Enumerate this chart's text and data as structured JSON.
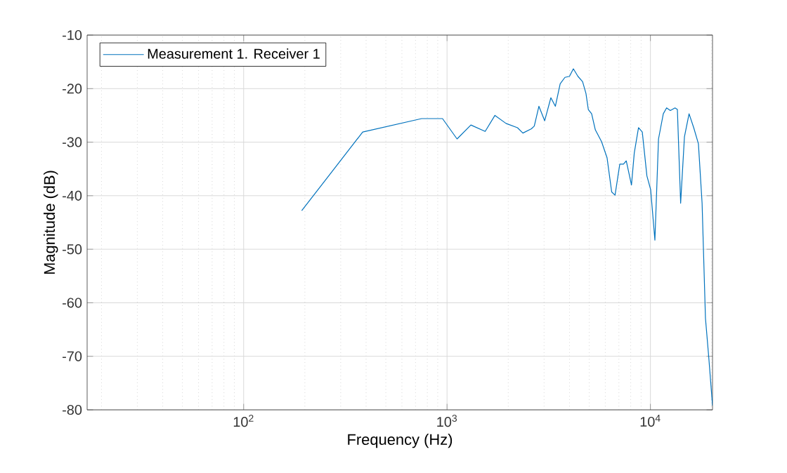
{
  "chart_data": {
    "type": "line",
    "xlabel": "Frequency (Hz)",
    "ylabel": "Magnitude (dB)",
    "x": [
      193,
      385,
      750,
      950,
      1120,
      1310,
      1540,
      1720,
      1950,
      2220,
      2360,
      2600,
      2685,
      2830,
      3020,
      3240,
      3410,
      3600,
      3800,
      4000,
      4180,
      4400,
      4640,
      4820,
      4950,
      5140,
      5360,
      5750,
      6120,
      6450,
      6700,
      7070,
      7370,
      7610,
      8070,
      8330,
      8740,
      9120,
      9610,
      10030,
      10520,
      10960,
      11570,
      12010,
      12530,
      13210,
      13570,
      14080,
      14700,
      15490,
      16330,
      17220,
      17950,
      18650,
      19360,
      20200
    ],
    "series": [
      {
        "name": "Measurement 1. Receiver 1",
        "color": "#0072bd",
        "values": [
          -42.8,
          -28.1,
          -25.6,
          -25.6,
          -29.4,
          -26.8,
          -28.0,
          -25.0,
          -26.5,
          -27.3,
          -28.3,
          -27.5,
          -27.0,
          -23.3,
          -26.0,
          -21.7,
          -23.3,
          -19.1,
          -17.9,
          -17.7,
          -16.3,
          -17.7,
          -18.7,
          -20.9,
          -23.9,
          -24.7,
          -27.7,
          -29.9,
          -32.9,
          -39.3,
          -39.9,
          -34.1,
          -34.1,
          -33.5,
          -38.0,
          -32.0,
          -27.3,
          -28.1,
          -36.3,
          -38.9,
          -48.3,
          -29.4,
          -24.7,
          -23.6,
          -24.1,
          -23.6,
          -23.9,
          -41.4,
          -29.0,
          -24.7,
          -27.3,
          -30.3,
          -41.4,
          -62.9,
          -70.2,
          -79.2
        ]
      }
    ],
    "xlim": [
      17,
      20200
    ],
    "ylim": [
      -80,
      -10
    ],
    "xticks": [
      {
        "value": 100,
        "label": "10$^{2}$"
      },
      {
        "value": 1000,
        "label": "10$^{3}$"
      },
      {
        "value": 10000,
        "label": "10$^{4}$"
      }
    ],
    "yticks": [
      -80,
      -70,
      -60,
      -50,
      -40,
      -30,
      -20,
      -10
    ],
    "log": "x",
    "grid": true,
    "legend": "top left",
    "line_style": "solid",
    "marker": "none"
  }
}
